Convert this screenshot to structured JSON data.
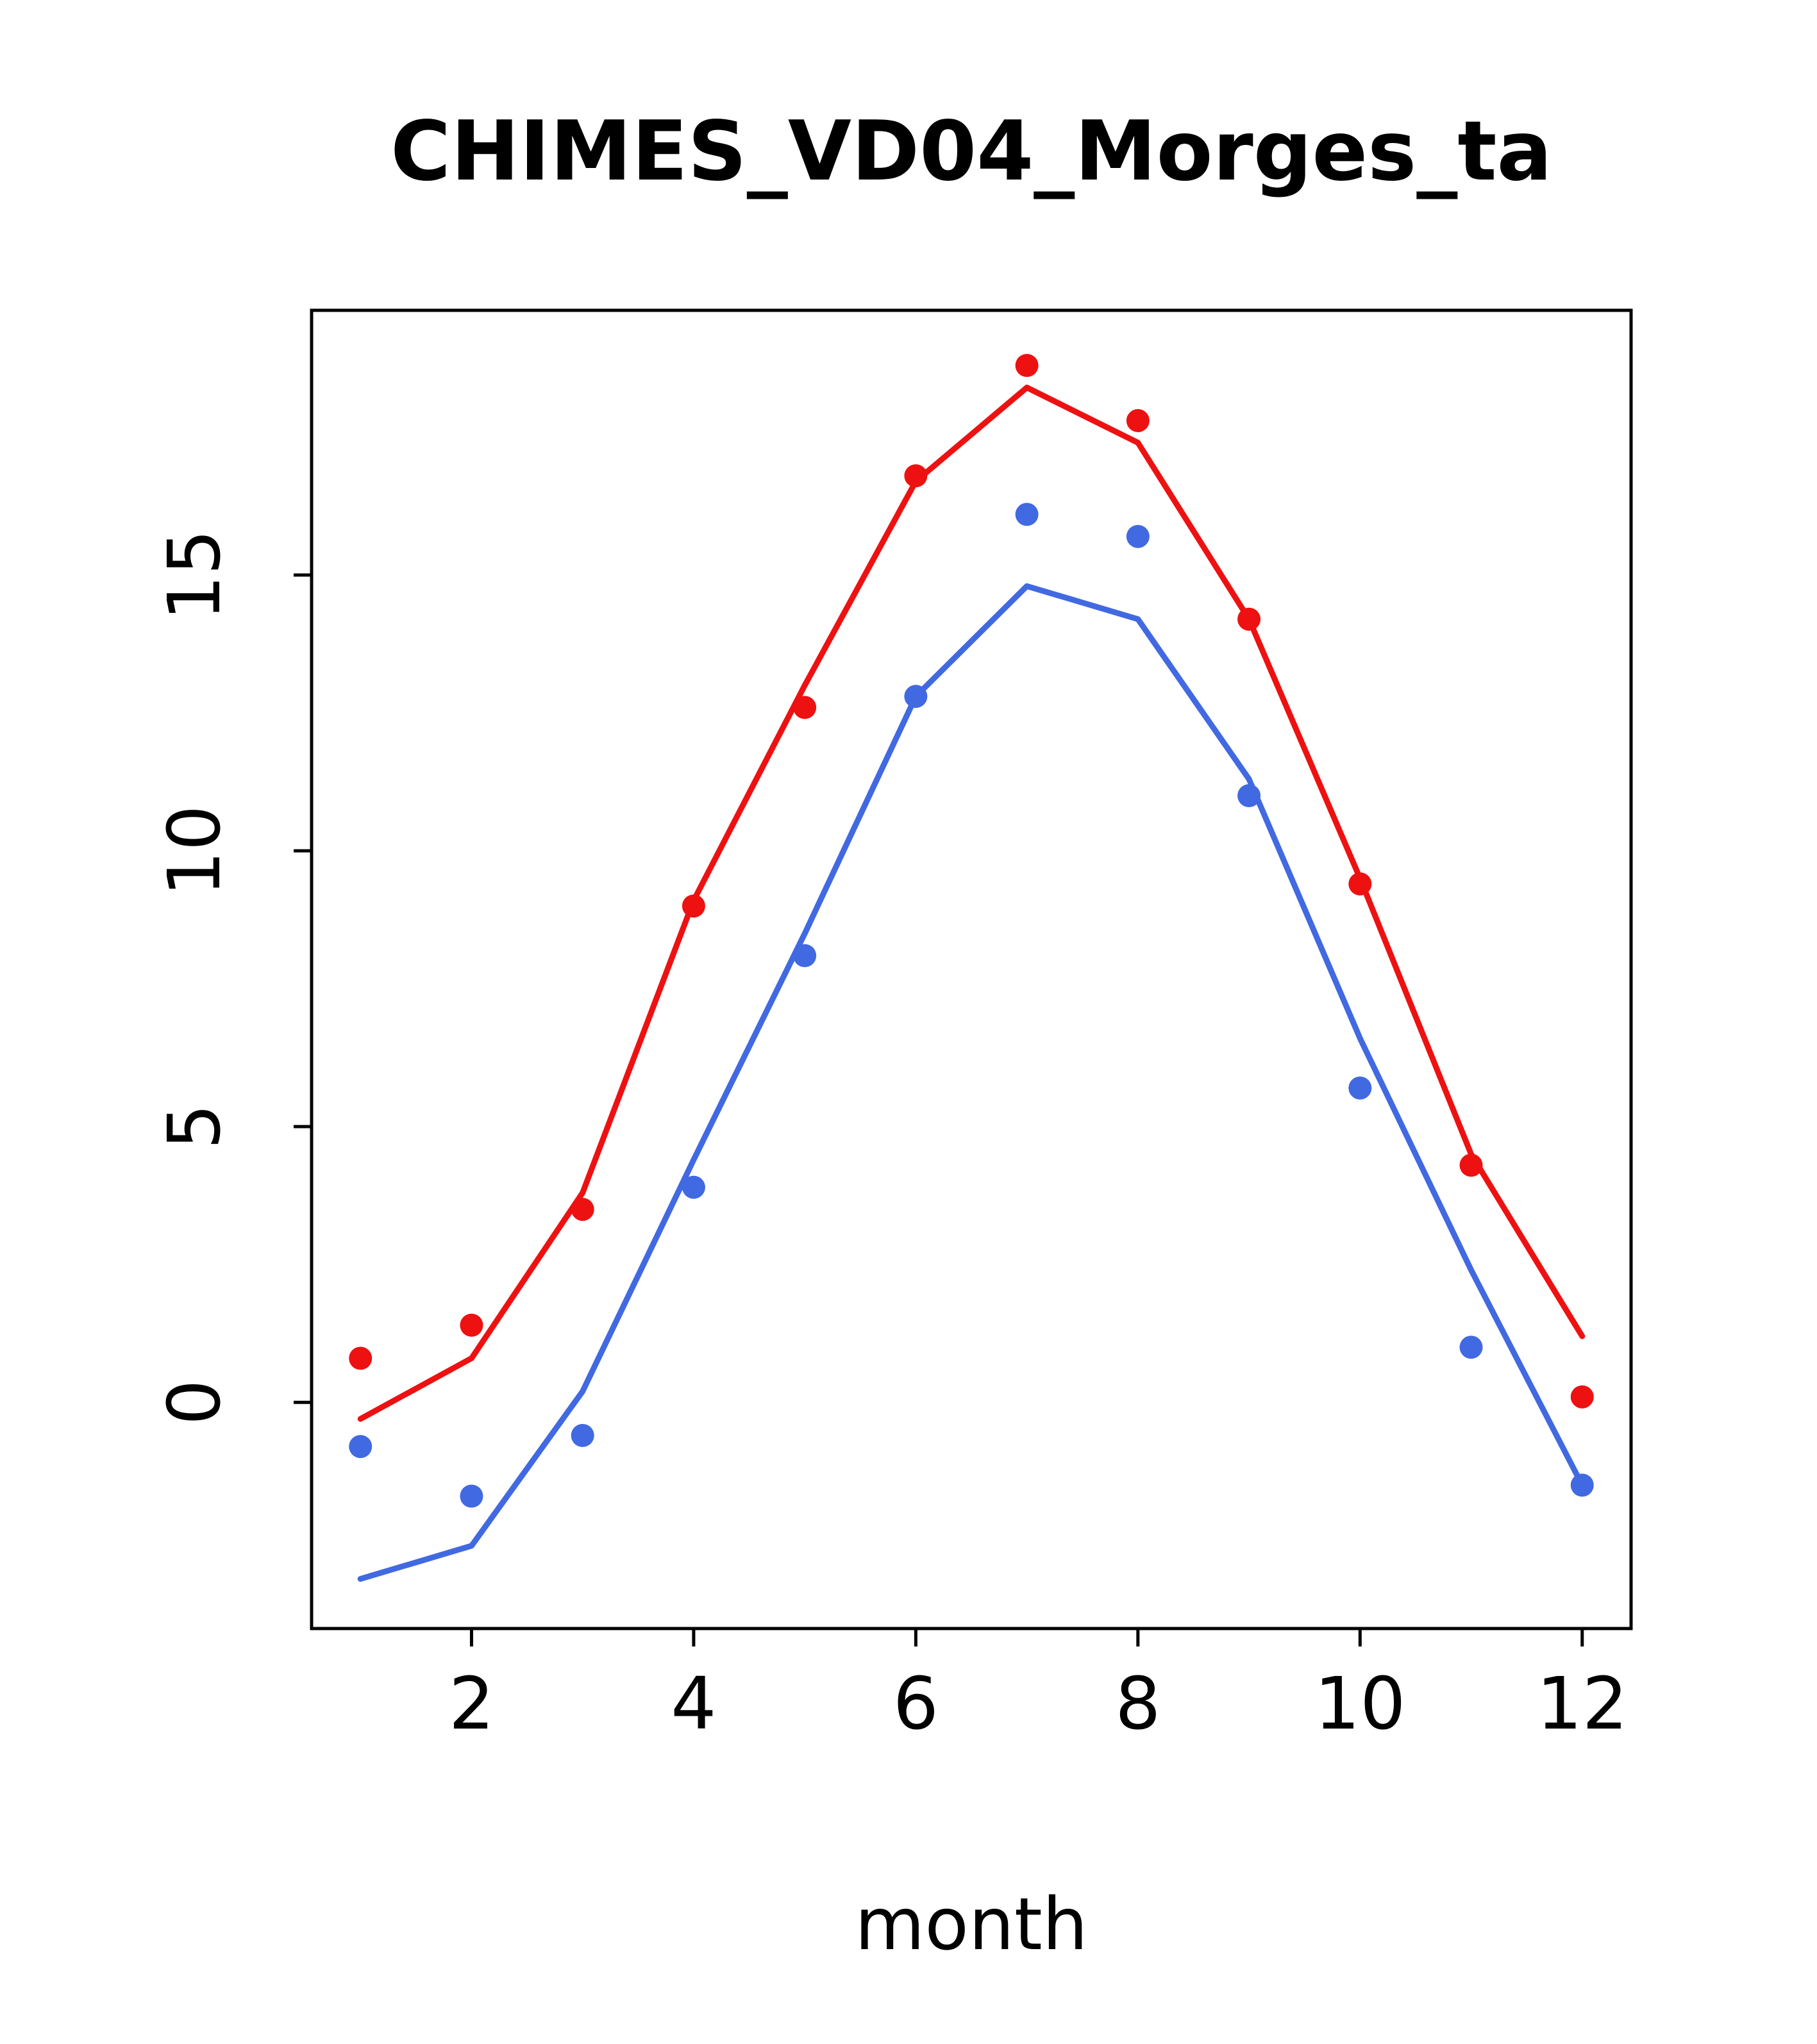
{
  "title": "CHIMES_VD04_Morges_ta",
  "chart_data": {
    "type": "line",
    "title": "CHIMES_VD04_Morges_ta",
    "xlabel": "month",
    "ylabel": "",
    "x": [
      1,
      2,
      3,
      4,
      5,
      6,
      7,
      8,
      9,
      10,
      11,
      12
    ],
    "xticks": [
      2,
      4,
      6,
      8,
      10,
      12
    ],
    "yticks": [
      0,
      5,
      10,
      15
    ],
    "xlim": [
      0.56,
      12.44
    ],
    "ylim": [
      -4.1,
      19.8
    ],
    "grid": false,
    "legend": "none",
    "colors": {
      "red": "#ee1111",
      "blue": "#4169e1",
      "axis": "#000000"
    },
    "series": [
      {
        "name": "red-line",
        "style": "line",
        "color": "#ee1111",
        "values": [
          -0.3,
          0.8,
          3.8,
          9.1,
          13.0,
          16.7,
          18.4,
          17.4,
          14.2,
          9.5,
          4.5,
          1.2
        ]
      },
      {
        "name": "red-points",
        "style": "points",
        "color": "#ee1111",
        "values": [
          0.8,
          1.4,
          3.5,
          9.0,
          12.6,
          16.8,
          18.8,
          17.8,
          14.2,
          9.4,
          4.3,
          0.1
        ]
      },
      {
        "name": "blue-line",
        "style": "line",
        "color": "#4169e1",
        "values": [
          -3.2,
          -2.6,
          0.2,
          4.4,
          8.5,
          12.8,
          14.8,
          14.2,
          11.3,
          6.6,
          2.4,
          -1.5
        ]
      },
      {
        "name": "blue-points",
        "style": "points",
        "color": "#4169e1",
        "values": [
          -0.8,
          -1.7,
          -0.6,
          3.9,
          8.1,
          12.8,
          16.1,
          15.7,
          11.0,
          5.7,
          1.0,
          -1.5
        ]
      }
    ]
  }
}
